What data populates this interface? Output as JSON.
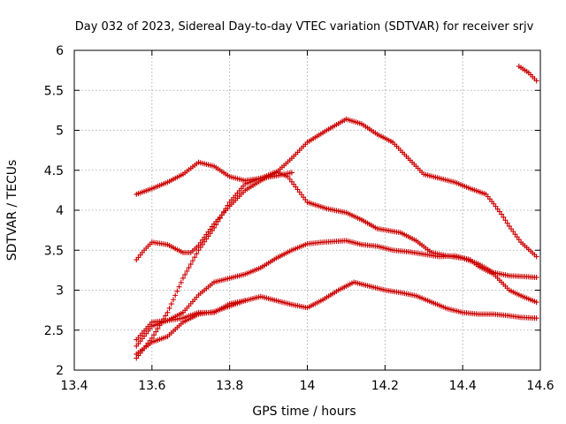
{
  "chart_data": {
    "type": "scatter",
    "title": "Day 032 of 2023, Sidereal Day-to-day VTEC variation (SDTVAR) for receiver srjv",
    "xlabel": "GPS time / hours",
    "ylabel": "SDTVAR / TECUs",
    "xlim": [
      13.4,
      14.6
    ],
    "ylim": [
      2,
      6
    ],
    "xticks": [
      "13.4",
      "13.6",
      "13.8",
      "14",
      "14.2",
      "14.4",
      "14.6"
    ],
    "yticks": [
      "2",
      "2.5",
      "3",
      "3.5",
      "4",
      "4.5",
      "5",
      "5.5",
      "6"
    ],
    "grid": true,
    "marker": "+",
    "color": "#cc0000",
    "series": [
      {
        "points": [
          [
            13.56,
            4.2
          ],
          [
            13.6,
            4.27
          ],
          [
            13.64,
            4.35
          ],
          [
            13.68,
            4.45
          ],
          [
            13.72,
            4.6
          ],
          [
            13.76,
            4.55
          ],
          [
            13.8,
            4.42
          ],
          [
            13.84,
            4.37
          ],
          [
            13.88,
            4.4
          ],
          [
            13.92,
            4.48
          ],
          [
            13.95,
            4.42
          ],
          [
            14.0,
            4.1
          ],
          [
            14.05,
            4.02
          ],
          [
            14.1,
            3.97
          ],
          [
            14.14,
            3.88
          ],
          [
            14.18,
            3.77
          ],
          [
            14.24,
            3.72
          ],
          [
            14.28,
            3.62
          ],
          [
            14.32,
            3.47
          ],
          [
            14.36,
            3.43
          ],
          [
            14.4,
            3.4
          ],
          [
            14.44,
            3.33
          ],
          [
            14.48,
            3.22
          ],
          [
            14.52,
            3.18
          ],
          [
            14.56,
            3.17
          ],
          [
            14.59,
            3.16
          ]
        ]
      },
      {
        "points": [
          [
            13.56,
            3.38
          ],
          [
            13.58,
            3.5
          ],
          [
            13.6,
            3.6
          ],
          [
            13.64,
            3.57
          ],
          [
            13.68,
            3.47
          ],
          [
            13.7,
            3.47
          ],
          [
            13.72,
            3.56
          ],
          [
            13.76,
            3.83
          ],
          [
            13.8,
            4.05
          ],
          [
            13.84,
            4.25
          ],
          [
            13.88,
            4.37
          ],
          [
            13.92,
            4.47
          ],
          [
            13.96,
            4.65
          ],
          [
            14.0,
            4.85
          ],
          [
            14.05,
            5.0
          ],
          [
            14.1,
            5.14
          ],
          [
            14.14,
            5.08
          ],
          [
            14.18,
            4.95
          ],
          [
            14.22,
            4.85
          ],
          [
            14.26,
            4.65
          ],
          [
            14.3,
            4.45
          ],
          [
            14.34,
            4.4
          ],
          [
            14.38,
            4.35
          ],
          [
            14.42,
            4.27
          ],
          [
            14.46,
            4.2
          ],
          [
            14.48,
            4.08
          ],
          [
            14.5,
            3.95
          ],
          [
            14.52,
            3.8
          ],
          [
            14.55,
            3.6
          ],
          [
            14.59,
            3.42
          ]
        ]
      },
      {
        "points": [
          [
            13.56,
            2.15
          ],
          [
            13.6,
            2.4
          ],
          [
            13.64,
            2.72
          ],
          [
            13.68,
            3.15
          ],
          [
            13.72,
            3.5
          ],
          [
            13.76,
            3.78
          ],
          [
            13.8,
            4.1
          ],
          [
            13.84,
            4.33
          ],
          [
            13.88,
            4.4
          ],
          [
            13.92,
            4.43
          ],
          [
            13.96,
            4.47
          ]
        ]
      },
      {
        "points": [
          [
            13.56,
            2.3
          ],
          [
            13.6,
            2.55
          ],
          [
            13.64,
            2.62
          ],
          [
            13.68,
            2.72
          ],
          [
            13.72,
            2.94
          ],
          [
            13.76,
            3.1
          ],
          [
            13.8,
            3.15
          ],
          [
            13.84,
            3.2
          ],
          [
            13.88,
            3.28
          ],
          [
            13.92,
            3.4
          ],
          [
            13.96,
            3.5
          ],
          [
            14.0,
            3.58
          ],
          [
            14.04,
            3.6
          ],
          [
            14.1,
            3.62
          ],
          [
            14.14,
            3.57
          ],
          [
            14.18,
            3.55
          ],
          [
            14.22,
            3.5
          ],
          [
            14.26,
            3.48
          ],
          [
            14.3,
            3.45
          ],
          [
            14.34,
            3.42
          ],
          [
            14.38,
            3.43
          ],
          [
            14.42,
            3.38
          ],
          [
            14.44,
            3.3
          ],
          [
            14.48,
            3.2
          ],
          [
            14.52,
            3.0
          ],
          [
            14.55,
            2.93
          ],
          [
            14.59,
            2.85
          ]
        ]
      },
      {
        "points": [
          [
            13.56,
            2.2
          ],
          [
            13.6,
            2.35
          ],
          [
            13.64,
            2.42
          ],
          [
            13.68,
            2.6
          ],
          [
            13.72,
            2.7
          ],
          [
            13.76,
            2.73
          ],
          [
            13.8,
            2.8
          ],
          [
            13.84,
            2.87
          ],
          [
            13.88,
            2.92
          ],
          [
            13.92,
            2.87
          ],
          [
            13.96,
            2.82
          ],
          [
            14.0,
            2.78
          ],
          [
            14.04,
            2.88
          ],
          [
            14.08,
            3.0
          ],
          [
            14.12,
            3.1
          ],
          [
            14.16,
            3.05
          ],
          [
            14.2,
            3.0
          ],
          [
            14.24,
            2.97
          ],
          [
            14.28,
            2.93
          ],
          [
            14.32,
            2.85
          ],
          [
            14.36,
            2.77
          ],
          [
            14.4,
            2.72
          ],
          [
            14.44,
            2.7
          ],
          [
            14.48,
            2.7
          ],
          [
            14.52,
            2.68
          ],
          [
            14.55,
            2.66
          ],
          [
            14.59,
            2.65
          ]
        ]
      },
      {
        "points": [
          [
            13.56,
            2.38
          ],
          [
            13.6,
            2.6
          ],
          [
            13.64,
            2.62
          ],
          [
            13.68,
            2.65
          ],
          [
            13.72,
            2.72
          ],
          [
            13.76,
            2.72
          ],
          [
            13.8,
            2.83
          ],
          [
            13.84,
            2.87
          ]
        ]
      },
      {
        "points": [
          [
            14.545,
            5.8
          ],
          [
            14.57,
            5.72
          ],
          [
            14.59,
            5.62
          ]
        ]
      }
    ]
  }
}
